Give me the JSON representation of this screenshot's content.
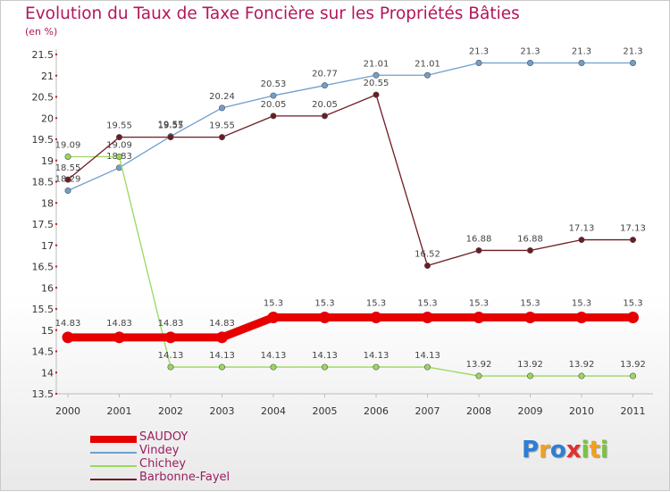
{
  "chart_data": {
    "type": "line",
    "title": "Evolution du Taux de Taxe Foncière sur les Propriétés Bâties",
    "ylabel": "(en %)",
    "xlabel": "",
    "ylim": [
      13.5,
      21.5
    ],
    "yticks": [
      "13.5",
      "14",
      "14.5",
      "15",
      "15.5",
      "16",
      "16.5",
      "17",
      "17.5",
      "18",
      "18.5",
      "19",
      "19.5",
      "20",
      "20.5",
      "21",
      "21.5"
    ],
    "categories": [
      "2000",
      "2001",
      "2002",
      "2003",
      "2004",
      "2005",
      "2006",
      "2007",
      "2008",
      "2009",
      "2010",
      "2011"
    ],
    "series": [
      {
        "name": "SAUDOY",
        "color": "#e60000",
        "values": [
          14.83,
          14.83,
          14.83,
          14.83,
          15.3,
          15.3,
          15.3,
          15.3,
          15.3,
          15.3,
          15.3,
          15.3
        ],
        "labels": [
          "14.83",
          "14.83",
          "14.83",
          "14.83",
          "15.3",
          "15.3",
          "15.3",
          "15.3",
          "15.3",
          "15.3",
          "15.3",
          "15.3"
        ]
      },
      {
        "name": "Vindey",
        "color": "#6f9fce",
        "values": [
          18.29,
          18.83,
          19.57,
          20.24,
          20.53,
          20.77,
          21.01,
          21.01,
          21.3,
          21.3,
          21.3,
          21.3
        ],
        "labels": [
          "18.29",
          "18.83",
          "19.57",
          "20.24",
          "20.53",
          "20.77",
          "21.01",
          "21.01",
          "21.3",
          "21.3",
          "21.3",
          "21.3"
        ]
      },
      {
        "name": "Chichey",
        "color": "#9bd75e",
        "values": [
          19.09,
          19.09,
          14.13,
          14.13,
          14.13,
          14.13,
          14.13,
          14.13,
          13.92,
          13.92,
          13.92,
          13.92
        ],
        "labels": [
          "19.09",
          "19.09",
          "14.13",
          "14.13",
          "14.13",
          "14.13",
          "14.13",
          "14.13",
          "13.92",
          "13.92",
          "13.92",
          "13.92"
        ]
      },
      {
        "name": "Barbonne-Fayel",
        "color": "#6e1a22",
        "values": [
          18.55,
          19.55,
          19.55,
          19.55,
          20.05,
          20.05,
          20.55,
          16.52,
          16.88,
          16.88,
          17.13,
          17.13
        ],
        "labels": [
          "18.55",
          "19.55",
          "19.55",
          "19.55",
          "20.05",
          "20.05",
          "20.55",
          "16.52",
          "16.88",
          "16.88",
          "17.13",
          "17.13"
        ]
      }
    ],
    "grid": false,
    "legend_position": "bottom-left"
  },
  "header": {
    "title": "Evolution du Taux de Taxe Foncière sur les Propriétés Bâties",
    "unit": "(en %)"
  },
  "legend": [
    {
      "name": "SAUDOY",
      "color": "#e60000"
    },
    {
      "name": "Vindey",
      "color": "#6f9fce"
    },
    {
      "name": "Chichey",
      "color": "#9bd75e"
    },
    {
      "name": "Barbonne-Fayel",
      "color": "#6e1a22"
    }
  ],
  "logo": {
    "letters": [
      "P",
      "r",
      "o",
      "x",
      "i",
      "t",
      "i"
    ],
    "colors": [
      "#2b7fd4",
      "#f0a020",
      "#2b7fd4",
      "#e03030",
      "#7cc242",
      "#f0a020",
      "#7cc242"
    ]
  }
}
